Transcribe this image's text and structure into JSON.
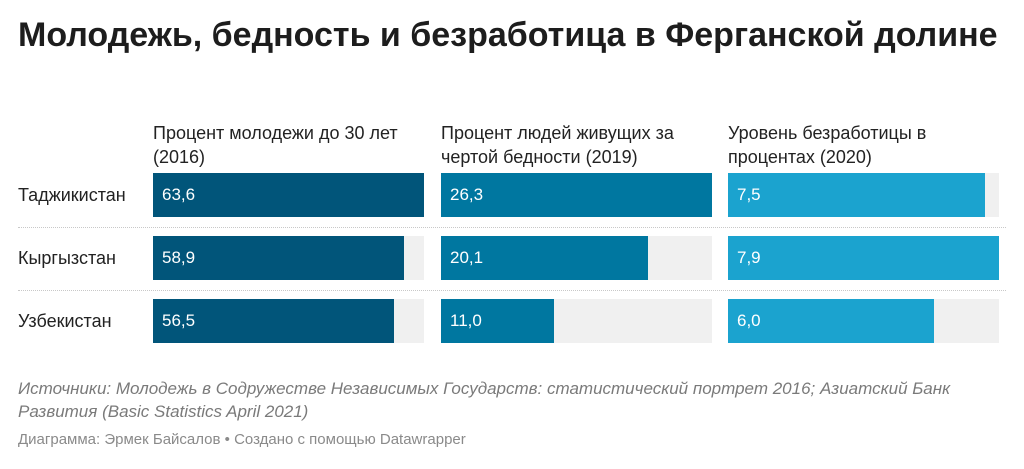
{
  "title": "Молодежь, бедность и безработица в Ферганской долине",
  "chart_data": {
    "type": "bar",
    "categories": [
      "Таджикистан",
      "Кыргызстан",
      "Узбекистан"
    ],
    "series": [
      {
        "name": "Процент молодежи до 30 лет (2016)",
        "values": [
          63.6,
          58.9,
          56.5
        ],
        "labels": [
          "63,6",
          "58,9",
          "56,5"
        ],
        "color": "#01557a"
      },
      {
        "name": "Процент людей живущих за чертой бедности (2019)",
        "values": [
          26.3,
          20.1,
          11.0
        ],
        "labels": [
          "26,3",
          "20,1",
          "11,0"
        ],
        "color": "#0077a0"
      },
      {
        "name": "Уровень безработицы в процентах (2020)",
        "values": [
          7.5,
          7.9,
          6.0
        ],
        "labels": [
          "7,5",
          "7,9",
          "6,0"
        ],
        "color": "#1ba3cf"
      }
    ]
  },
  "source": "Источники: Молодежь в Содружестве Независимых Государств: статистический портрет 2016; Азиатский Банк Развития (Basic Statistics April 2021)",
  "credit": "Диаграмма: Эрмек Байсалов • Создано с помощью Datawrapper"
}
